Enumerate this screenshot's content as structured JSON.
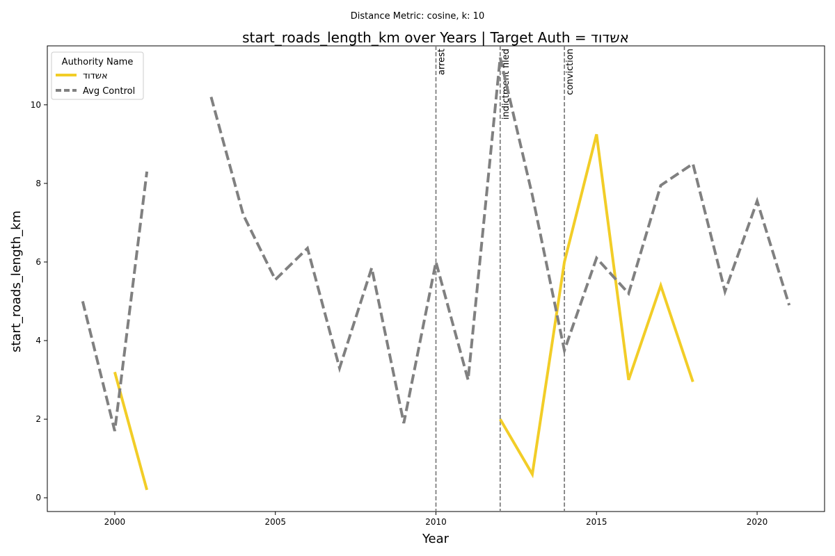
{
  "chart_data": {
    "type": "line",
    "suptitle": "Distance Metric: cosine, k: 10",
    "title": "start_roads_length_km over Years | Target Auth = אשדוד",
    "xlabel": "Year",
    "ylabel": "start_roads_length_km",
    "xlim": [
      1997.9,
      2022.1
    ],
    "ylim": [
      -0.35,
      11.5
    ],
    "x_ticks": [
      2000,
      2005,
      2010,
      2015,
      2020
    ],
    "y_ticks": [
      0,
      2,
      4,
      6,
      8,
      10
    ],
    "grid": false,
    "legend": {
      "title": "Authority Name",
      "position": "top-left"
    },
    "series": [
      {
        "name": "אשדוד",
        "color": "#f2cd27",
        "style": "solid",
        "points": [
          [
            2000,
            3.2
          ],
          [
            2001,
            0.2
          ],
          [
            2002,
            null
          ],
          [
            2003,
            null
          ],
          [
            2004,
            null
          ],
          [
            2005,
            null
          ],
          [
            2006,
            null
          ],
          [
            2007,
            null
          ],
          [
            2008,
            null
          ],
          [
            2009,
            null
          ],
          [
            2010,
            null
          ],
          [
            2011,
            null
          ],
          [
            2012,
            2.0
          ],
          [
            2013,
            0.6
          ],
          [
            2014,
            6.0
          ],
          [
            2015,
            9.25
          ],
          [
            2016,
            3.0
          ],
          [
            2017,
            5.4
          ],
          [
            2018,
            2.95
          ]
        ]
      },
      {
        "name": "Avg Control",
        "color": "#808080",
        "style": "dashed",
        "points": [
          [
            1999,
            5.0
          ],
          [
            2000,
            1.7
          ],
          [
            2001,
            8.3
          ],
          [
            2002,
            null
          ],
          [
            2003,
            10.2
          ],
          [
            2004,
            7.2
          ],
          [
            2005,
            5.55
          ],
          [
            2006,
            6.35
          ],
          [
            2007,
            3.3
          ],
          [
            2008,
            5.85
          ],
          [
            2009,
            1.9
          ],
          [
            2010,
            6.0
          ],
          [
            2011,
            3.0
          ],
          [
            2012,
            11.2
          ],
          [
            2013,
            7.7
          ],
          [
            2014,
            3.75
          ],
          [
            2015,
            6.1
          ],
          [
            2016,
            5.2
          ],
          [
            2017,
            7.95
          ],
          [
            2018,
            8.5
          ],
          [
            2019,
            5.25
          ],
          [
            2020,
            7.55
          ],
          [
            2021,
            4.9
          ]
        ]
      }
    ],
    "event_lines": [
      {
        "x": 2010,
        "label": "arrest"
      },
      {
        "x": 2012,
        "label": "indictment filed"
      },
      {
        "x": 2014,
        "label": "conviction"
      }
    ]
  }
}
